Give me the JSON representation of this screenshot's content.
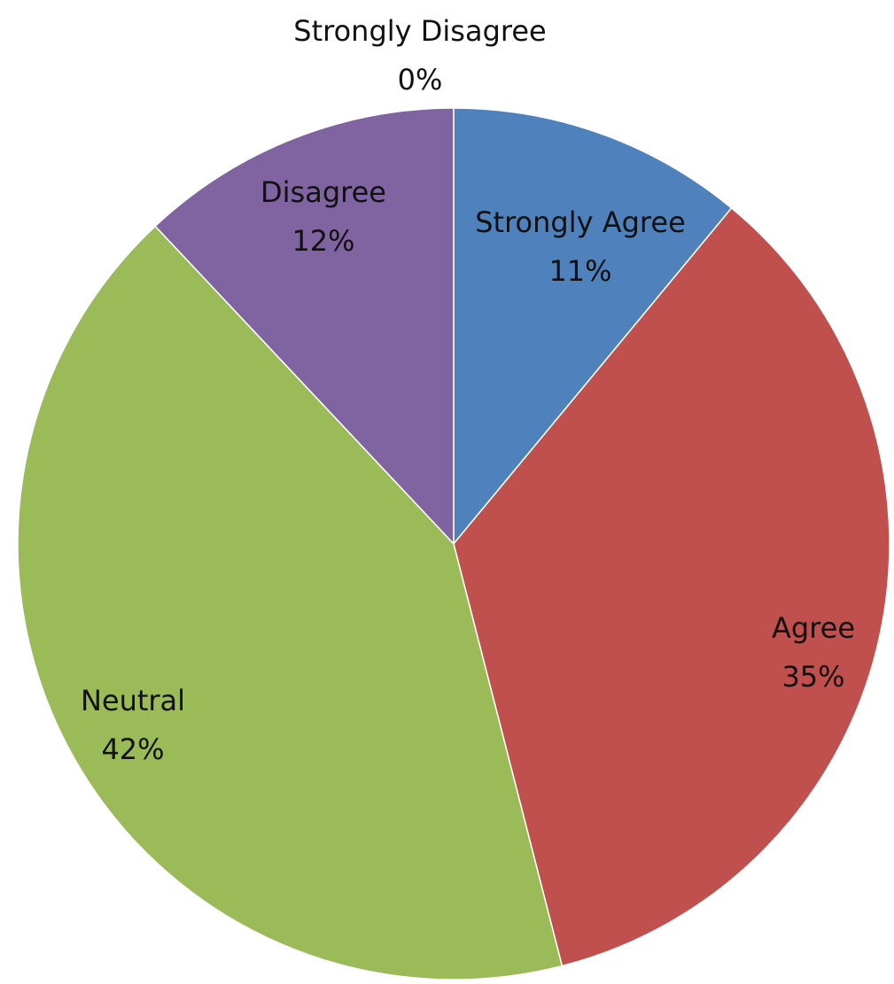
{
  "chart_data": {
    "type": "pie",
    "title": "",
    "categories": [
      "Strongly Agree",
      "Agree",
      "Neutral",
      "Disagree",
      "Strongly Disagree"
    ],
    "values": [
      11,
      35,
      42,
      12,
      0
    ],
    "value_labels": [
      "11%",
      "35%",
      "42%",
      "12%",
      "0%"
    ],
    "colors": [
      "#4F81BD",
      "#C0504D",
      "#9BBB59",
      "#8064A2",
      "#4BACC6"
    ],
    "start_angle_deg": 0,
    "direction": "clockwise",
    "legend": "none",
    "data_labels": "category-and-percent"
  }
}
